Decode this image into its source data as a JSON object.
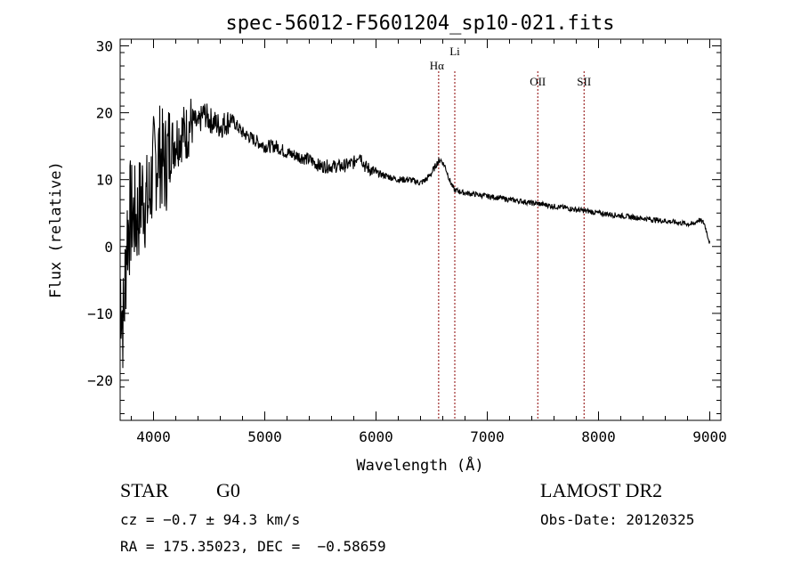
{
  "chart_data": {
    "type": "line",
    "title": "spec-56012-F5601204_sp10-021.fits",
    "xlabel": "Wavelength (Å)",
    "ylabel": "Flux (relative)",
    "xlim": [
      3700,
      9100
    ],
    "ylim": [
      -26,
      31
    ],
    "xticks": [
      4000,
      5000,
      6000,
      7000,
      8000,
      9000
    ],
    "yticks": [
      -20,
      -10,
      0,
      10,
      20,
      30
    ],
    "grid": false,
    "line_markers": [
      {
        "label": "Hα",
        "x": 6563
      },
      {
        "label": "Li",
        "x": 6708
      },
      {
        "label": "OII",
        "x": 7454
      },
      {
        "label": "SII",
        "x": 7870
      }
    ],
    "series": [
      {
        "x": [
          3700,
          3730,
          3760,
          3800,
          3850,
          3900,
          3950,
          4000,
          4050,
          4100,
          4150,
          4200,
          4250,
          4300,
          4350,
          4400,
          4450,
          4500,
          4600,
          4700,
          4800,
          4900,
          5000,
          5100,
          5200,
          5300,
          5400,
          5500,
          5600,
          5700,
          5800,
          5850,
          5900,
          5950,
          6000,
          6100,
          6200,
          6300,
          6400,
          6450,
          6500,
          6550,
          6580,
          6620,
          6660,
          6700,
          6800,
          6900,
          7000,
          7100,
          7200,
          7300,
          7400,
          7500,
          7600,
          7700,
          7800,
          7900,
          8000,
          8100,
          8200,
          8300,
          8400,
          8500,
          8600,
          8700,
          8800,
          8850,
          8900,
          8950,
          9000
        ],
        "values": [
          -5,
          -12,
          2,
          5,
          4,
          8,
          6,
          12,
          14,
          12,
          15,
          16,
          17,
          17,
          19,
          18,
          20,
          19,
          18,
          19,
          17,
          16,
          15,
          15,
          14,
          13.5,
          13,
          12,
          12,
          12,
          12.5,
          14,
          12,
          11.5,
          11,
          10.5,
          10,
          10,
          9.5,
          10,
          11,
          12.5,
          13,
          12,
          10,
          8.5,
          8,
          7.8,
          7.5,
          7.3,
          7.0,
          6.8,
          6.5,
          6.3,
          6.0,
          5.8,
          5.5,
          5.3,
          5.0,
          4.8,
          4.6,
          4.4,
          4.2,
          4.0,
          3.8,
          3.6,
          3.4,
          3.3,
          4.0,
          3.5,
          0.5
        ]
      }
    ]
  },
  "info": {
    "class_label": "STAR",
    "subclass_label": "G0",
    "cz_text": "cz = −0.7 ± 94.3 km/s",
    "radec_text": "RA = 175.35023, DEC =  −0.58659",
    "survey_label": "LAMOST DR2",
    "obsdate_text": "Obs-Date: 20120325"
  },
  "colors": {
    "line": "#000000",
    "marker": "#8b0000",
    "axes": "#000000"
  }
}
